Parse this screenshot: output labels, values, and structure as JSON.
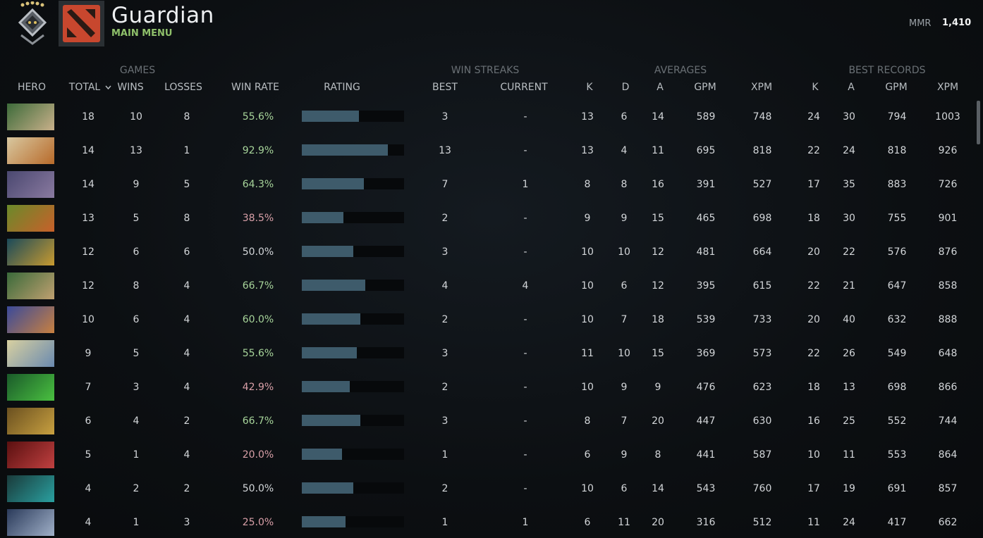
{
  "header": {
    "title": "Guardian",
    "subtitle": "MAIN MENU",
    "mmr_label": "MMR",
    "mmr": "1,410"
  },
  "table": {
    "groups": [
      "GAMES",
      "WIN STREAKS",
      "AVERAGES",
      "BEST RECORDS"
    ],
    "columns": [
      "HERO",
      "TOTAL",
      "WINS",
      "LOSSES",
      "WIN RATE",
      "RATING",
      "BEST",
      "CURRENT",
      "K",
      "D",
      "A",
      "GPM",
      "XPM",
      "K",
      "A",
      "GPM",
      "XPM"
    ],
    "rows": [
      [
        18,
        10,
        8,
        "55.6%",
        3,
        "-",
        13,
        6,
        14,
        589,
        748,
        24,
        30,
        794,
        1003
      ],
      [
        14,
        13,
        1,
        "92.9%",
        13,
        "-",
        13,
        4,
        11,
        695,
        818,
        22,
        24,
        818,
        926
      ],
      [
        14,
        9,
        5,
        "64.3%",
        7,
        1,
        8,
        8,
        16,
        391,
        527,
        17,
        35,
        883,
        726
      ],
      [
        13,
        5,
        8,
        "38.5%",
        2,
        "-",
        9,
        9,
        15,
        465,
        698,
        18,
        30,
        755,
        901
      ],
      [
        12,
        6,
        6,
        "50.0%",
        3,
        "-",
        10,
        10,
        12,
        481,
        664,
        20,
        22,
        576,
        876
      ],
      [
        12,
        8,
        4,
        "66.7%",
        4,
        4,
        10,
        6,
        12,
        395,
        615,
        22,
        21,
        647,
        858
      ],
      [
        10,
        6,
        4,
        "60.0%",
        2,
        "-",
        10,
        7,
        18,
        539,
        733,
        20,
        40,
        632,
        888
      ],
      [
        9,
        5,
        4,
        "55.6%",
        3,
        "-",
        11,
        10,
        15,
        369,
        573,
        22,
        26,
        549,
        648
      ],
      [
        7,
        3,
        4,
        "42.9%",
        2,
        "-",
        10,
        9,
        9,
        476,
        623,
        18,
        13,
        698,
        866
      ],
      [
        6,
        4,
        2,
        "66.7%",
        3,
        "-",
        8,
        7,
        20,
        447,
        630,
        16,
        25,
        552,
        744
      ],
      [
        5,
        1,
        4,
        "20.0%",
        1,
        "-",
        6,
        9,
        8,
        441,
        587,
        10,
        11,
        553,
        864
      ],
      [
        4,
        2,
        2,
        "50.0%",
        2,
        "-",
        10,
        6,
        14,
        543,
        760,
        17,
        19,
        691,
        857
      ],
      [
        4,
        1,
        3,
        "25.0%",
        1,
        1,
        6,
        11,
        20,
        316,
        512,
        11,
        24,
        417,
        662
      ]
    ],
    "ratings": [
      0.56,
      0.84,
      0.61,
      0.41,
      0.5,
      0.62,
      0.57,
      0.54,
      0.47,
      0.57,
      0.39,
      0.5,
      0.43
    ]
  }
}
